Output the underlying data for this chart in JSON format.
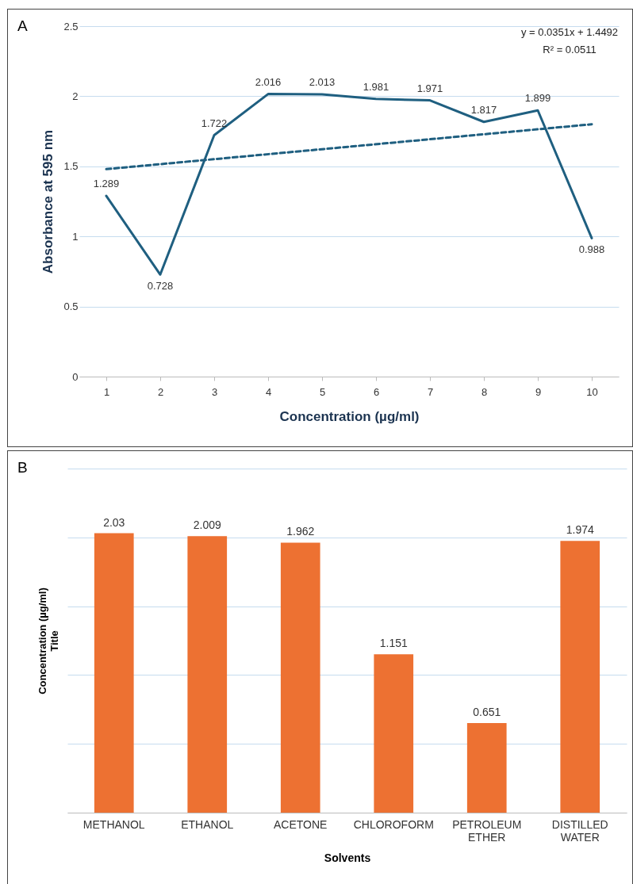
{
  "chart_data": [
    {
      "type": "line",
      "xlabel": "Concentration (µg/ml)",
      "ylabel": "Absorbance at 595 nm",
      "categories": [
        "1",
        "2",
        "3",
        "4",
        "5",
        "6",
        "7",
        "8",
        "9",
        "10"
      ],
      "series": [
        {
          "color": "#1f5f80",
          "values": [
            1.289,
            0.728,
            1.722,
            2.016,
            2.013,
            1.981,
            1.971,
            1.817,
            1.899,
            0.988
          ],
          "value_labels": [
            "1.289",
            "0.728",
            "1.722",
            "2.016",
            "2.013",
            "1.981",
            "1.971",
            "1.817",
            "1.899",
            "0.988"
          ]
        },
        {
          "type": "line",
          "color": "#1f5f80",
          "line_style": "dashed",
          "x": [
            "1",
            "10"
          ],
          "values": [
            1.48,
            1.8
          ]
        }
      ],
      "ylim": [
        0,
        2.5
      ],
      "yticks": [
        0,
        0.5,
        1,
        1.5,
        2,
        2.5
      ],
      "grid": "y",
      "marker": "none",
      "annotations": [
        "A",
        "y = 0.0351x + 1.4492",
        "R² = 0.0511"
      ]
    },
    {
      "type": "bar",
      "xlabel": "Solvents",
      "ylabel": "Concentration (µg/ml)\nTitle",
      "categories": [
        "METHANOL",
        "ETHANOL",
        "ACETONE",
        "CHLOROFORM",
        "PETROLEUM ETHER",
        "DISTILLED WATER"
      ],
      "values": [
        2.03,
        2.009,
        1.962,
        1.151,
        0.651,
        1.974
      ],
      "color": "#ed7132",
      "data_labels": true,
      "ylim": [
        0,
        2.5
      ],
      "yticks": [
        {
          "value": 0,
          "label": null
        },
        {
          "value": 0.5,
          "label": null
        },
        {
          "value": 1,
          "label": null
        },
        {
          "value": 1.5,
          "label": null
        },
        {
          "value": 2,
          "label": null
        },
        {
          "value": 2.5,
          "label": null
        }
      ],
      "grid": "y",
      "tick_labels": "x",
      "annotations": [
        "B"
      ]
    }
  ]
}
